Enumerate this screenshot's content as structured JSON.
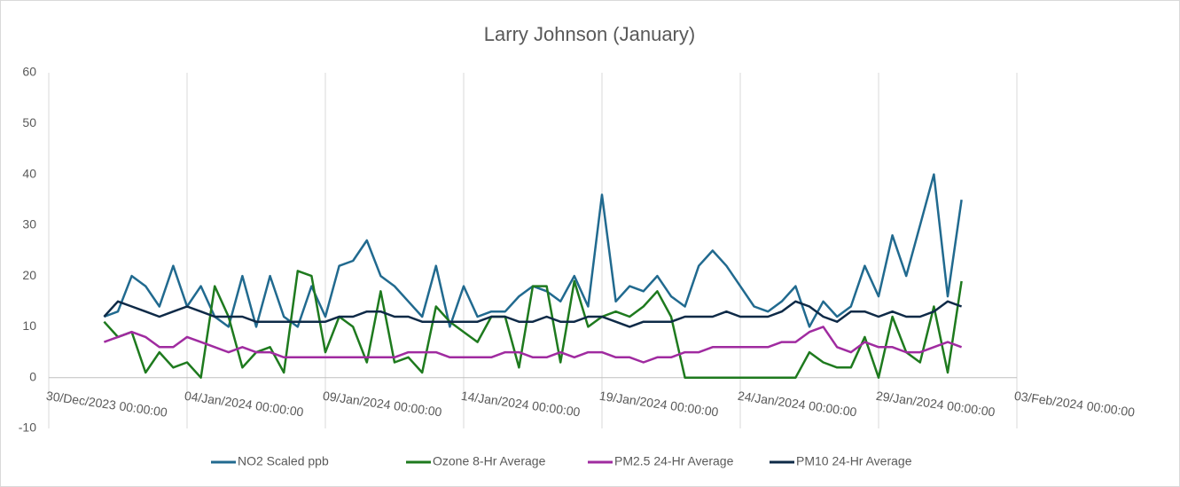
{
  "chart_data": {
    "type": "line",
    "title": "Larry Johnson (January)",
    "x": [
      "2024-01-01T00:00:00",
      "2024-01-01T12:00:00",
      "2024-01-02T00:00:00",
      "2024-01-02T12:00:00",
      "2024-01-03T00:00:00",
      "2024-01-03T12:00:00",
      "2024-01-04T00:00:00",
      "2024-01-04T12:00:00",
      "2024-01-05T00:00:00",
      "2024-01-05T12:00:00",
      "2024-01-06T00:00:00",
      "2024-01-06T12:00:00",
      "2024-01-07T00:00:00",
      "2024-01-07T12:00:00",
      "2024-01-08T00:00:00",
      "2024-01-08T12:00:00",
      "2024-01-09T00:00:00",
      "2024-01-09T12:00:00",
      "2024-01-10T00:00:00",
      "2024-01-10T12:00:00",
      "2024-01-11T00:00:00",
      "2024-01-11T12:00:00",
      "2024-01-12T00:00:00",
      "2024-01-12T12:00:00",
      "2024-01-13T00:00:00",
      "2024-01-13T12:00:00",
      "2024-01-14T00:00:00",
      "2024-01-14T12:00:00",
      "2024-01-15T00:00:00",
      "2024-01-15T12:00:00",
      "2024-01-16T00:00:00",
      "2024-01-16T12:00:00",
      "2024-01-17T00:00:00",
      "2024-01-17T12:00:00",
      "2024-01-18T00:00:00",
      "2024-01-18T12:00:00",
      "2024-01-19T00:00:00",
      "2024-01-19T12:00:00",
      "2024-01-20T00:00:00",
      "2024-01-20T12:00:00",
      "2024-01-21T00:00:00",
      "2024-01-21T12:00:00",
      "2024-01-22T00:00:00",
      "2024-01-22T12:00:00",
      "2024-01-23T00:00:00",
      "2024-01-23T12:00:00",
      "2024-01-24T00:00:00",
      "2024-01-24T12:00:00",
      "2024-01-25T00:00:00",
      "2024-01-25T12:00:00",
      "2024-01-26T00:00:00",
      "2024-01-26T12:00:00",
      "2024-01-27T00:00:00",
      "2024-01-27T12:00:00",
      "2024-01-28T00:00:00",
      "2024-01-28T12:00:00",
      "2024-01-29T00:00:00",
      "2024-01-29T12:00:00",
      "2024-01-30T00:00:00",
      "2024-01-30T12:00:00",
      "2024-01-31T00:00:00",
      "2024-01-31T12:00:00",
      "2024-02-01T00:00:00"
    ],
    "series": [
      {
        "name": "NO2 Scaled ppb",
        "color": "#216a8f",
        "values": [
          12,
          13,
          20,
          18,
          14,
          22,
          14,
          18,
          12,
          10,
          20,
          10,
          20,
          12,
          10,
          18,
          12,
          22,
          23,
          27,
          20,
          18,
          15,
          12,
          22,
          10,
          18,
          12,
          13,
          13,
          16,
          18,
          17,
          15,
          20,
          14,
          36,
          15,
          18,
          17,
          20,
          16,
          14,
          22,
          25,
          22,
          18,
          14,
          13,
          15,
          18,
          10,
          15,
          12,
          14,
          22,
          16,
          28,
          20,
          30,
          40,
          16,
          35
        ]
      },
      {
        "name": "Ozone 8-Hr Average",
        "color": "#1e7a1e",
        "values": [
          11,
          8,
          9,
          1,
          5,
          2,
          3,
          0,
          18,
          12,
          2,
          5,
          6,
          1,
          21,
          20,
          5,
          12,
          10,
          3,
          17,
          3,
          4,
          1,
          14,
          11,
          9,
          7,
          12,
          12,
          2,
          18,
          18,
          3,
          19,
          10,
          12,
          13,
          12,
          14,
          17,
          12,
          0,
          0,
          0,
          0,
          0,
          0,
          0,
          0,
          0,
          5,
          3,
          2,
          2,
          8,
          0,
          12,
          5,
          3,
          14,
          1,
          19
        ]
      },
      {
        "name": "PM2.5 24-Hr Average",
        "color": "#a02ba0",
        "values": [
          7,
          8,
          9,
          8,
          6,
          6,
          8,
          7,
          6,
          5,
          6,
          5,
          5,
          4,
          4,
          4,
          4,
          4,
          4,
          4,
          4,
          4,
          5,
          5,
          5,
          4,
          4,
          4,
          4,
          5,
          5,
          4,
          4,
          5,
          4,
          5,
          5,
          4,
          4,
          3,
          4,
          4,
          5,
          5,
          6,
          6,
          6,
          6,
          6,
          7,
          7,
          9,
          10,
          6,
          5,
          7,
          6,
          6,
          5,
          5,
          6,
          7,
          6
        ]
      },
      {
        "name": "PM10 24-Hr Average",
        "color": "#0e2a47",
        "values": [
          12,
          15,
          14,
          13,
          12,
          13,
          14,
          13,
          12,
          12,
          12,
          11,
          11,
          11,
          11,
          11,
          11,
          12,
          12,
          13,
          13,
          12,
          12,
          11,
          11,
          11,
          11,
          11,
          12,
          12,
          11,
          11,
          12,
          11,
          11,
          12,
          12,
          11,
          10,
          11,
          11,
          11,
          12,
          12,
          12,
          13,
          12,
          12,
          12,
          13,
          15,
          14,
          12,
          11,
          13,
          13,
          12,
          13,
          12,
          12,
          13,
          15,
          14
        ]
      }
    ],
    "xlim": [
      "2023-12-30T00:00:00",
      "2024-02-03T00:00:00"
    ],
    "xticks": [
      {
        "value": "2023-12-30T00:00:00",
        "label": "30/Dec/2023 00:00:00"
      },
      {
        "value": "2024-01-04T00:00:00",
        "label": "04/Jan/2024 00:00:00"
      },
      {
        "value": "2024-01-09T00:00:00",
        "label": "09/Jan/2024 00:00:00"
      },
      {
        "value": "2024-01-14T00:00:00",
        "label": "14/Jan/2024 00:00:00"
      },
      {
        "value": "2024-01-19T00:00:00",
        "label": "19/Jan/2024 00:00:00"
      },
      {
        "value": "2024-01-24T00:00:00",
        "label": "24/Jan/2024 00:00:00"
      },
      {
        "value": "2024-01-29T00:00:00",
        "label": "29/Jan/2024 00:00:00"
      },
      {
        "value": "2024-02-03T00:00:00",
        "label": "03/Feb/2024 00:00:00"
      }
    ],
    "ylim": [
      -10,
      60
    ],
    "yticks": [
      -10,
      0,
      10,
      20,
      30,
      40,
      50,
      60
    ],
    "grid": "vertical",
    "legend": "bottom"
  }
}
